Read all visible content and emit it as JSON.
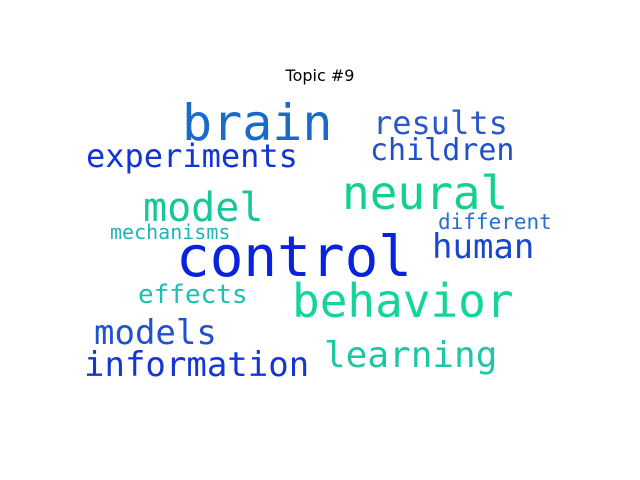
{
  "title": "Topic #9",
  "words": [
    {
      "text": "brain",
      "color": "#1a6bc8"
    },
    {
      "text": "results",
      "color": "#2c58c9"
    },
    {
      "text": "experiments",
      "color": "#1134d6"
    },
    {
      "text": "children",
      "color": "#2050c8"
    },
    {
      "text": "neural",
      "color": "#12d18e"
    },
    {
      "text": "model",
      "color": "#19c59a"
    },
    {
      "text": "different",
      "color": "#2a6ec9"
    },
    {
      "text": "mechanisms",
      "color": "#1fb5b6"
    },
    {
      "text": "human",
      "color": "#1a46cf"
    },
    {
      "text": "control",
      "color": "#0922dc"
    },
    {
      "text": "effects",
      "color": "#1bc0b2"
    },
    {
      "text": "behavior",
      "color": "#13d49a"
    },
    {
      "text": "models",
      "color": "#1f52cc"
    },
    {
      "text": "learning",
      "color": "#1bc7a4"
    },
    {
      "text": "information",
      "color": "#1437d4"
    }
  ]
}
